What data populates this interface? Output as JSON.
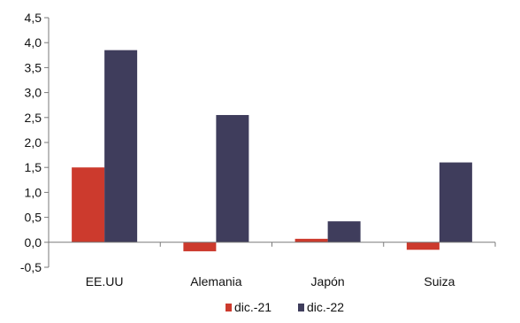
{
  "chart_data": {
    "type": "bar",
    "categories": [
      "EE.UU",
      "Alemania",
      "Japón",
      "Suiza"
    ],
    "series": [
      {
        "name": "dic.-21",
        "values": [
          1.5,
          -0.18,
          0.07,
          -0.15
        ],
        "color": "#cc3a2d"
      },
      {
        "name": "dic.-22",
        "values": [
          3.85,
          2.55,
          0.42,
          1.6
        ],
        "color": "#3f3d5c"
      }
    ],
    "ylim": [
      -0.5,
      4.5
    ],
    "yticks": [
      4.5,
      4.0,
      3.5,
      3.0,
      2.5,
      2.0,
      1.5,
      1.0,
      0.5,
      0.0,
      -0.5
    ],
    "ytick_labels": [
      "4,5",
      "4,0",
      "3,5",
      "3,0",
      "2,5",
      "2,0",
      "1,5",
      "1,0",
      "0,5",
      "0,0",
      "-0,5"
    ],
    "title": "",
    "xlabel": "",
    "ylabel": "",
    "legend_position": "bottom-center",
    "grid": false
  }
}
